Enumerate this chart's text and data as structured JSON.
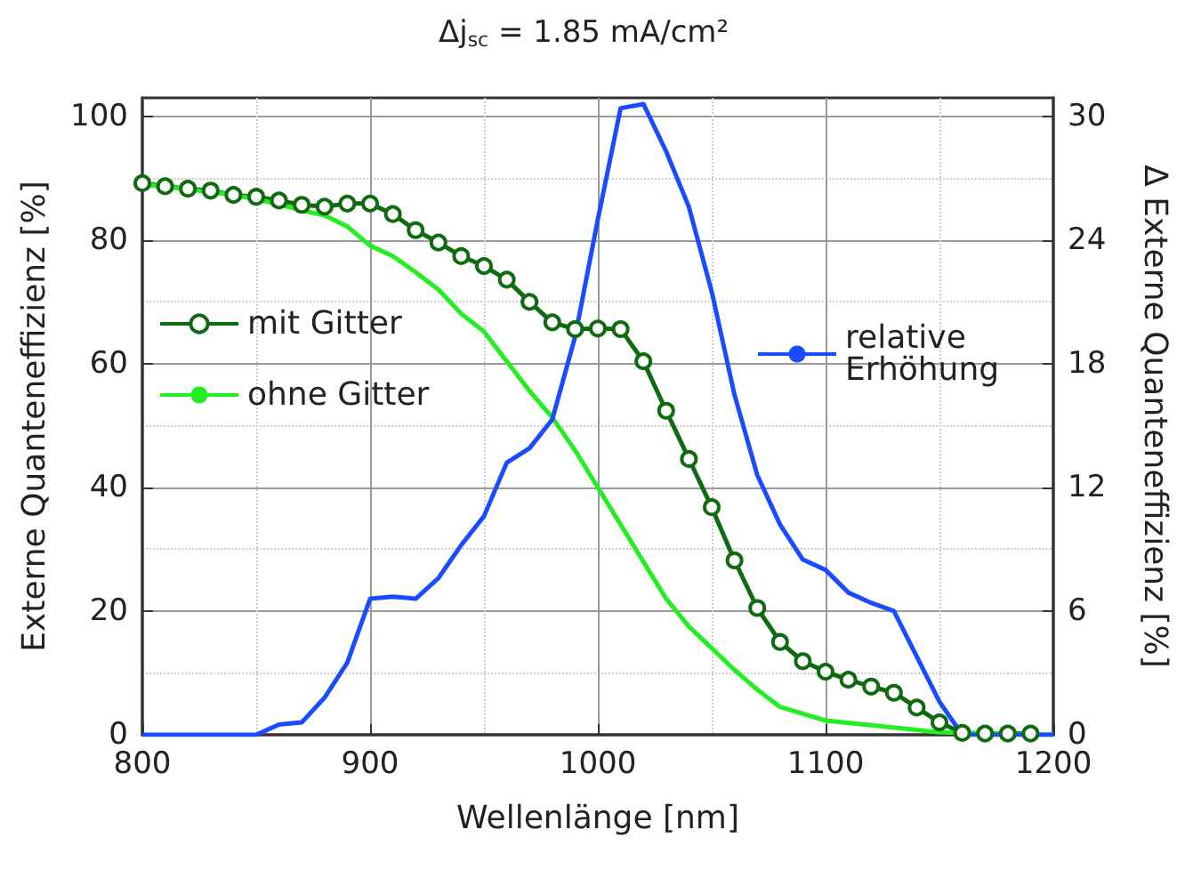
{
  "chart_data": {
    "type": "line",
    "title": "Δj$_{sc}$ = 1.85 mA/cm²",
    "xlabel": "Wellenlänge [nm]",
    "ylabel": "Externe Quanteneffizienz [%]",
    "y2label": "Δ Externe Quanteneffizienz [%]",
    "xlim": [
      800,
      1200
    ],
    "xticks": [
      800,
      900,
      1000,
      1100,
      1200
    ],
    "ylim": [
      0,
      103
    ],
    "yticks": [
      0,
      20,
      40,
      60,
      80,
      100
    ],
    "y2lim": [
      0,
      30.9
    ],
    "y2ticks": [
      0,
      6,
      12,
      18,
      24,
      30
    ],
    "grid": true,
    "legend": "left",
    "series": [
      {
        "name": "mit Gitter",
        "color": "#0f6b0f",
        "marker": "circle",
        "x": [
          800,
          810,
          820,
          830,
          840,
          850,
          860,
          870,
          880,
          890,
          900,
          910,
          920,
          930,
          940,
          950,
          960,
          970,
          980,
          990,
          1000,
          1010,
          1020,
          1030,
          1040,
          1050,
          1060,
          1070,
          1080,
          1090,
          1100,
          1110,
          1120,
          1130,
          1140,
          1150,
          1160,
          1170,
          1180,
          1190
        ],
        "values": [
          89.2,
          88.7,
          88.3,
          88,
          87.3,
          87,
          86.4,
          85.7,
          85.4,
          85.9,
          85.9,
          84.2,
          81.6,
          79.6,
          77.4,
          75.8,
          73.6,
          70,
          66.7,
          65.6,
          65.7,
          65.6,
          60.4,
          52.4,
          44.6,
          36.8,
          28.2,
          20.5,
          15,
          11.9,
          10.2,
          8.9,
          7.8,
          6.8,
          4.4,
          2,
          0.3,
          0.2,
          0.2,
          0.2
        ]
      },
      {
        "name": "ohne Gitter",
        "color": "#22ee22",
        "marker": "none",
        "x": [
          800,
          820,
          840,
          850,
          860,
          870,
          880,
          890,
          900,
          910,
          920,
          930,
          940,
          950,
          960,
          970,
          980,
          990,
          1000,
          1010,
          1020,
          1030,
          1040,
          1050,
          1060,
          1070,
          1080,
          1100,
          1150,
          1200
        ],
        "values": [
          89,
          88.2,
          87.3,
          86.6,
          85.8,
          84.8,
          84,
          82.2,
          79.1,
          77.4,
          74.8,
          72,
          68.1,
          65.2,
          60.4,
          55.6,
          51.3,
          46,
          40,
          34,
          28,
          22,
          17.5,
          14,
          10.5,
          7.3,
          4.5,
          2.3,
          0.4,
          0
        ]
      },
      {
        "name": "relative Erhöhung",
        "color": "#1a4cff",
        "marker": "none",
        "axis": "y2",
        "x": [
          800,
          850,
          860,
          870,
          880,
          890,
          900,
          910,
          920,
          930,
          940,
          950,
          960,
          970,
          980,
          990,
          1000,
          1010,
          1020,
          1030,
          1040,
          1050,
          1060,
          1070,
          1080,
          1090,
          1100,
          1110,
          1120,
          1130,
          1140,
          1150,
          1160,
          1200
        ],
        "values": [
          0,
          0,
          0.5,
          0.6,
          1.8,
          3.5,
          6.6,
          6.7,
          6.6,
          7.6,
          9.2,
          10.6,
          13.2,
          13.9,
          15.3,
          19.3,
          25,
          30.4,
          30.6,
          28.3,
          25.6,
          21.5,
          16.5,
          12.6,
          10.2,
          8.5,
          8,
          6.9,
          6.4,
          6,
          3.8,
          1.6,
          0,
          0
        ]
      }
    ]
  }
}
